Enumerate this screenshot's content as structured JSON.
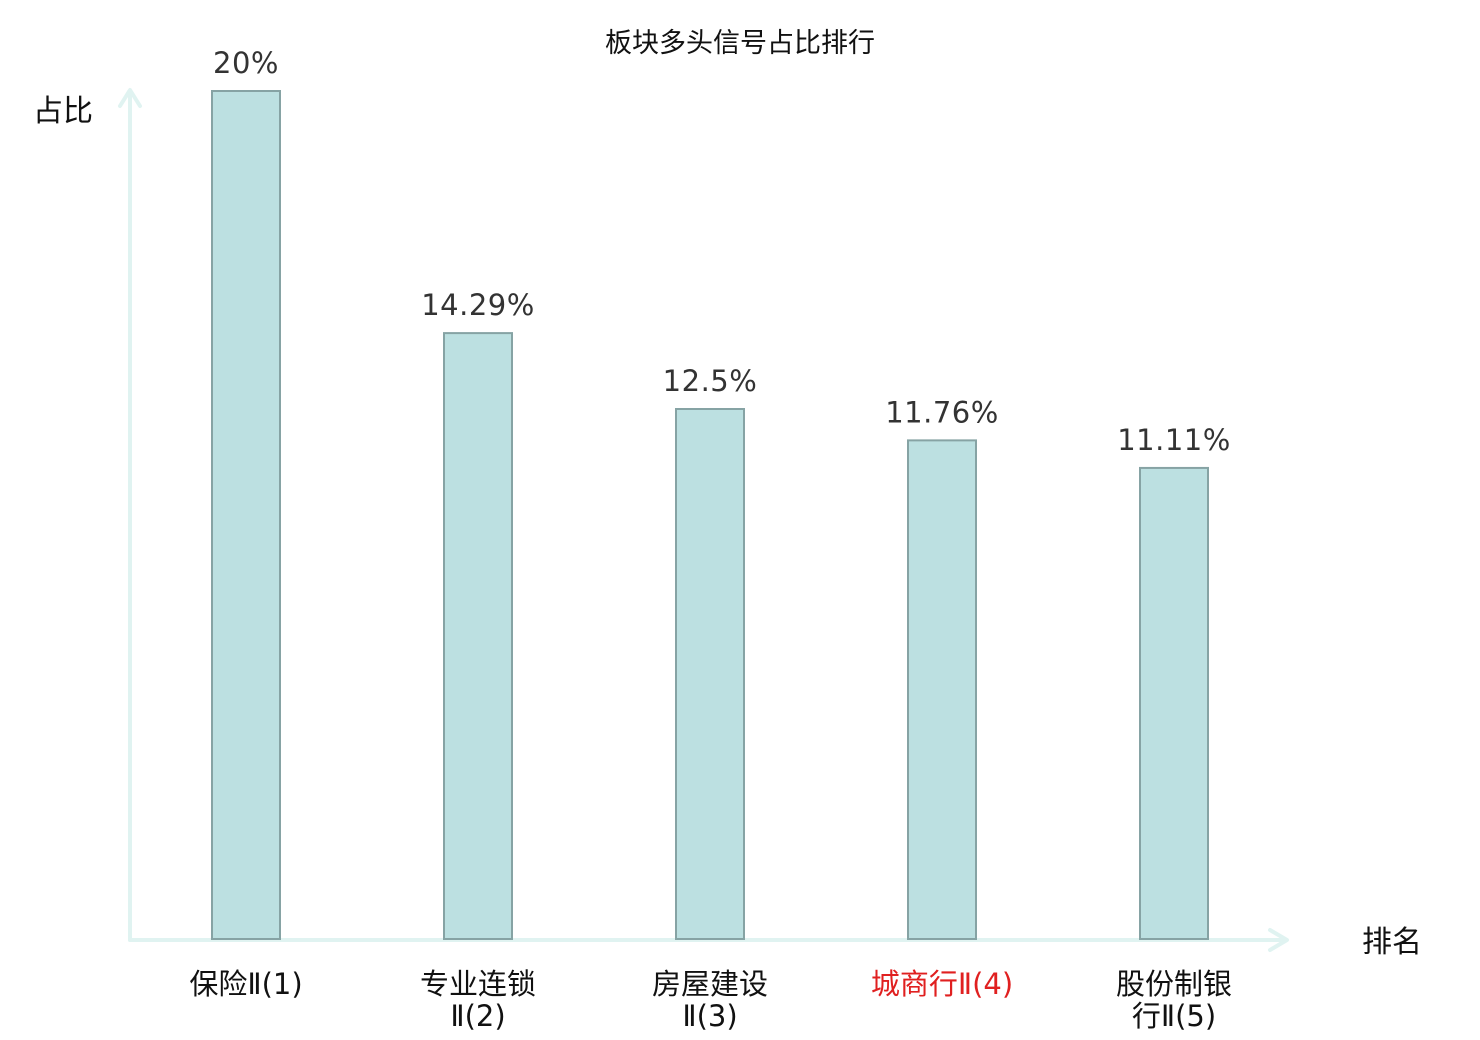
{
  "chart_data": {
    "type": "bar",
    "title": "板块多头信号占比排行",
    "ylabel": "占比",
    "xlabel": "排名",
    "unit": "%",
    "ylim": [
      0,
      20
    ],
    "grid": false,
    "categories": [
      {
        "lines": [
          "保险Ⅱ(1)"
        ],
        "highlight": false
      },
      {
        "lines": [
          "专业连锁",
          "Ⅱ(2)"
        ],
        "highlight": false
      },
      {
        "lines": [
          "房屋建设",
          "Ⅱ(3)"
        ],
        "highlight": false
      },
      {
        "lines": [
          "城商行Ⅱ(4)"
        ],
        "highlight": true
      },
      {
        "lines": [
          "股份制银",
          "行Ⅱ(5)"
        ],
        "highlight": false
      }
    ],
    "values": [
      20,
      14.29,
      12.5,
      11.76,
      11.11
    ],
    "value_labels": [
      "20%",
      "14.29%",
      "12.5%",
      "11.76%",
      "11.11%"
    ],
    "colors": {
      "bar_fill": "#bce0e1",
      "bar_stroke": "#86a3a4",
      "axis": "#e0f3f1",
      "highlight_label": "#e02020"
    }
  }
}
